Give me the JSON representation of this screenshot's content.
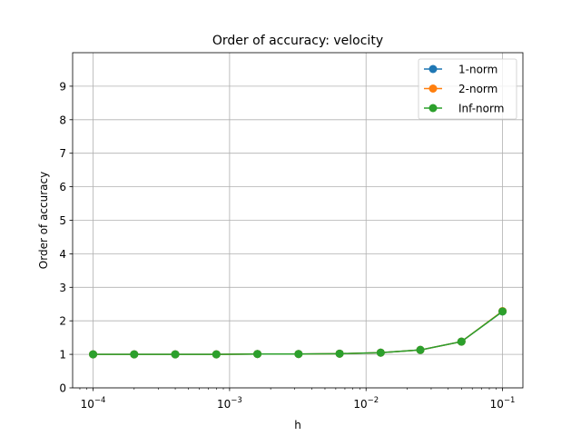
{
  "chart_data": {
    "type": "line",
    "title": "Order of accuracy: velocity",
    "xlabel": "h",
    "ylabel": "Order of accuracy",
    "xscale": "log",
    "xlim": [
      7.08e-05,
      0.141
    ],
    "ylim": [
      0,
      10
    ],
    "yticks": [
      0,
      1,
      2,
      3,
      4,
      5,
      6,
      7,
      8,
      9
    ],
    "xticks": [
      {
        "base": "10",
        "exp": "−4",
        "value": 0.0001
      },
      {
        "base": "10",
        "exp": "−3",
        "value": 0.001
      },
      {
        "base": "10",
        "exp": "−2",
        "value": 0.01
      },
      {
        "base": "10",
        "exp": "−1",
        "value": 0.1
      }
    ],
    "grid": true,
    "legend_position": "top-right",
    "x": [
      0.0001,
      0.0002,
      0.0004,
      0.0008,
      0.0016,
      0.0032,
      0.0064,
      0.0128,
      0.025,
      0.05,
      0.1
    ],
    "series": [
      {
        "name": "1-norm",
        "color": "#1f77b4",
        "values": [
          1.0,
          1.0,
          1.0,
          1.0,
          1.01,
          1.01,
          1.02,
          1.05,
          1.13,
          1.38,
          2.28
        ]
      },
      {
        "name": "2-norm",
        "color": "#ff7f0e",
        "values": [
          1.0,
          1.0,
          1.0,
          1.0,
          1.01,
          1.01,
          1.02,
          1.05,
          1.13,
          1.38,
          2.29
        ]
      },
      {
        "name": "Inf-norm",
        "color": "#2ca02c",
        "values": [
          1.0,
          1.0,
          1.0,
          1.0,
          1.01,
          1.01,
          1.02,
          1.05,
          1.13,
          1.38,
          2.28
        ]
      }
    ]
  }
}
